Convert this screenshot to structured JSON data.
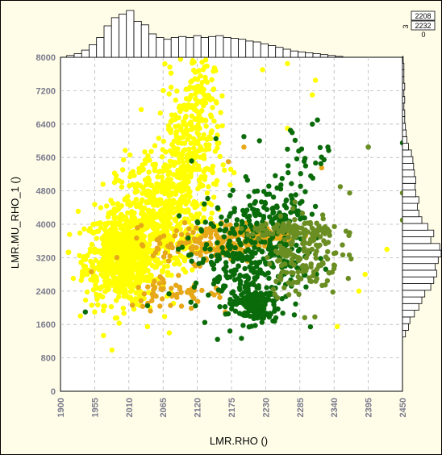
{
  "chart_data": {
    "type": "scatter",
    "xlabel": "LMR.RHO ()",
    "ylabel": "LMR.MU_RHO_1 ()",
    "xlim": [
      1900,
      2450
    ],
    "ylim": [
      0,
      8000
    ],
    "x_ticks": [
      1900,
      1955,
      2010,
      2065,
      2120,
      2175,
      2230,
      2285,
      2340,
      2395,
      2450
    ],
    "y_ticks": [
      0,
      800,
      1600,
      2400,
      3200,
      4000,
      4800,
      5600,
      6400,
      7200,
      8000
    ],
    "grid": true,
    "colors": {
      "yellow": "#ffff00",
      "orange": "#e6a817",
      "dark_green": "#0a6b0a",
      "olive": "#6b8e23"
    },
    "color_key": {
      "top_value": "2208",
      "bottom_value": "2232",
      "left_mark": "3",
      "bottom_mark": "0"
    },
    "series": [
      {
        "color": "#ffff00",
        "clusters": [
          {
            "center": [
              2000,
              3200
            ],
            "spread": [
              30,
              550
            ],
            "count": 700
          },
          {
            "center": [
              2060,
              4200
            ],
            "spread": [
              35,
              700
            ],
            "count": 450
          },
          {
            "center": [
              2105,
              5600
            ],
            "spread": [
              25,
              900
            ],
            "count": 300
          },
          {
            "center": [
              2120,
              7200
            ],
            "spread": [
              14,
              450
            ],
            "count": 70
          }
        ],
        "points": [
          [
            1955,
            1900
          ],
          [
            1945,
            2900
          ],
          [
            1935,
            2800
          ],
          [
            2040,
            1550
          ],
          [
            2075,
            1400
          ],
          [
            2225,
            7700
          ],
          [
            2265,
            7850
          ],
          [
            2310,
            7450
          ],
          [
            2305,
            7100
          ],
          [
            2265,
            6300
          ],
          [
            2345,
            1550
          ],
          [
            2425,
            3400
          ],
          [
            2380,
            2400
          ],
          [
            2390,
            2800
          ]
        ]
      },
      {
        "color": "#e6a817",
        "clusters": [
          {
            "center": [
              2140,
              3550
            ],
            "spread": [
              45,
              230
            ],
            "count": 170
          },
          {
            "center": [
              2230,
              3750
            ],
            "spread": [
              30,
              120
            ],
            "count": 110
          },
          {
            "center": [
              2085,
              2400
            ],
            "spread": [
              40,
              220
            ],
            "count": 60
          }
        ],
        "points": [
          [
            2170,
            5500
          ],
          [
            2195,
            5850
          ],
          [
            2320,
            5350
          ],
          [
            2165,
            1900
          ],
          [
            2200,
            2100
          ]
        ]
      },
      {
        "color": "#0a6b0a",
        "clusters": [
          {
            "center": [
              2200,
              3200
            ],
            "spread": [
              45,
              650
            ],
            "count": 330
          },
          {
            "center": [
              2210,
              2050
            ],
            "spread": [
              20,
              220
            ],
            "count": 140
          },
          {
            "center": [
              2250,
              4400
            ],
            "spread": [
              25,
              350
            ],
            "count": 90
          },
          {
            "center": [
              2300,
              5600
            ],
            "spread": [
              20,
              400
            ],
            "count": 20
          }
        ],
        "points": [
          [
            1940,
            1900
          ],
          [
            2040,
            2050
          ],
          [
            2150,
            6050
          ],
          [
            2195,
            6100
          ],
          [
            2220,
            6000
          ],
          [
            2265,
            5800
          ],
          [
            2270,
            6250
          ],
          [
            2305,
            6400
          ],
          [
            2330,
            5850
          ],
          [
            2395,
            5850
          ],
          [
            2450,
            5950
          ]
        ]
      },
      {
        "color": "#6b8e23",
        "clusters": [
          {
            "center": [
              2290,
              3300
            ],
            "spread": [
              30,
              500
            ],
            "count": 160
          },
          {
            "center": [
              2275,
              3850
            ],
            "spread": [
              35,
              90
            ],
            "count": 70
          }
        ],
        "points": [
          [
            2350,
            4900
          ],
          [
            2365,
            4750
          ],
          [
            2450,
            4750
          ],
          [
            2450,
            4100
          ],
          [
            2340,
            3300
          ],
          [
            2395,
            5850
          ]
        ]
      }
    ],
    "top_histogram": {
      "bins": [
        1910,
        1922,
        1934,
        1946,
        1958,
        1970,
        1982,
        1994,
        2006,
        2018,
        2030,
        2042,
        2054,
        2066,
        2078,
        2090,
        2102,
        2114,
        2126,
        2138,
        2150,
        2162,
        2174,
        2186,
        2198,
        2210,
        2222,
        2234,
        2246,
        2258,
        2270,
        2282,
        2294,
        2306,
        2318,
        2330,
        2342
      ],
      "counts": [
        2,
        4,
        8,
        14,
        22,
        35,
        44,
        48,
        52,
        40,
        36,
        26,
        22,
        20,
        22,
        23,
        22,
        24,
        22,
        23,
        24,
        22,
        21,
        20,
        18,
        17,
        15,
        13,
        11,
        9,
        7,
        6,
        5,
        4,
        3,
        2,
        1
      ]
    },
    "right_histogram": {
      "bins": [
        1300,
        1460,
        1620,
        1780,
        1940,
        2100,
        2260,
        2420,
        2580,
        2740,
        2900,
        3060,
        3220,
        3380,
        3540,
        3700,
        3860,
        4020,
        4180,
        4340,
        4500,
        4660,
        4820,
        4980,
        5140,
        5300,
        5460,
        5620,
        5780,
        5940,
        6100,
        6260,
        6420,
        6580,
        6740,
        6900,
        7060,
        7220,
        7380,
        7540,
        7700,
        7860
      ],
      "counts": [
        4,
        8,
        10,
        16,
        22,
        26,
        30,
        38,
        42,
        46,
        44,
        48,
        52,
        50,
        38,
        42,
        34,
        26,
        22,
        20,
        22,
        18,
        17,
        18,
        16,
        15,
        14,
        12,
        8,
        6,
        5,
        4,
        3,
        3,
        2,
        3,
        2,
        3,
        2,
        2,
        2,
        1
      ]
    }
  }
}
